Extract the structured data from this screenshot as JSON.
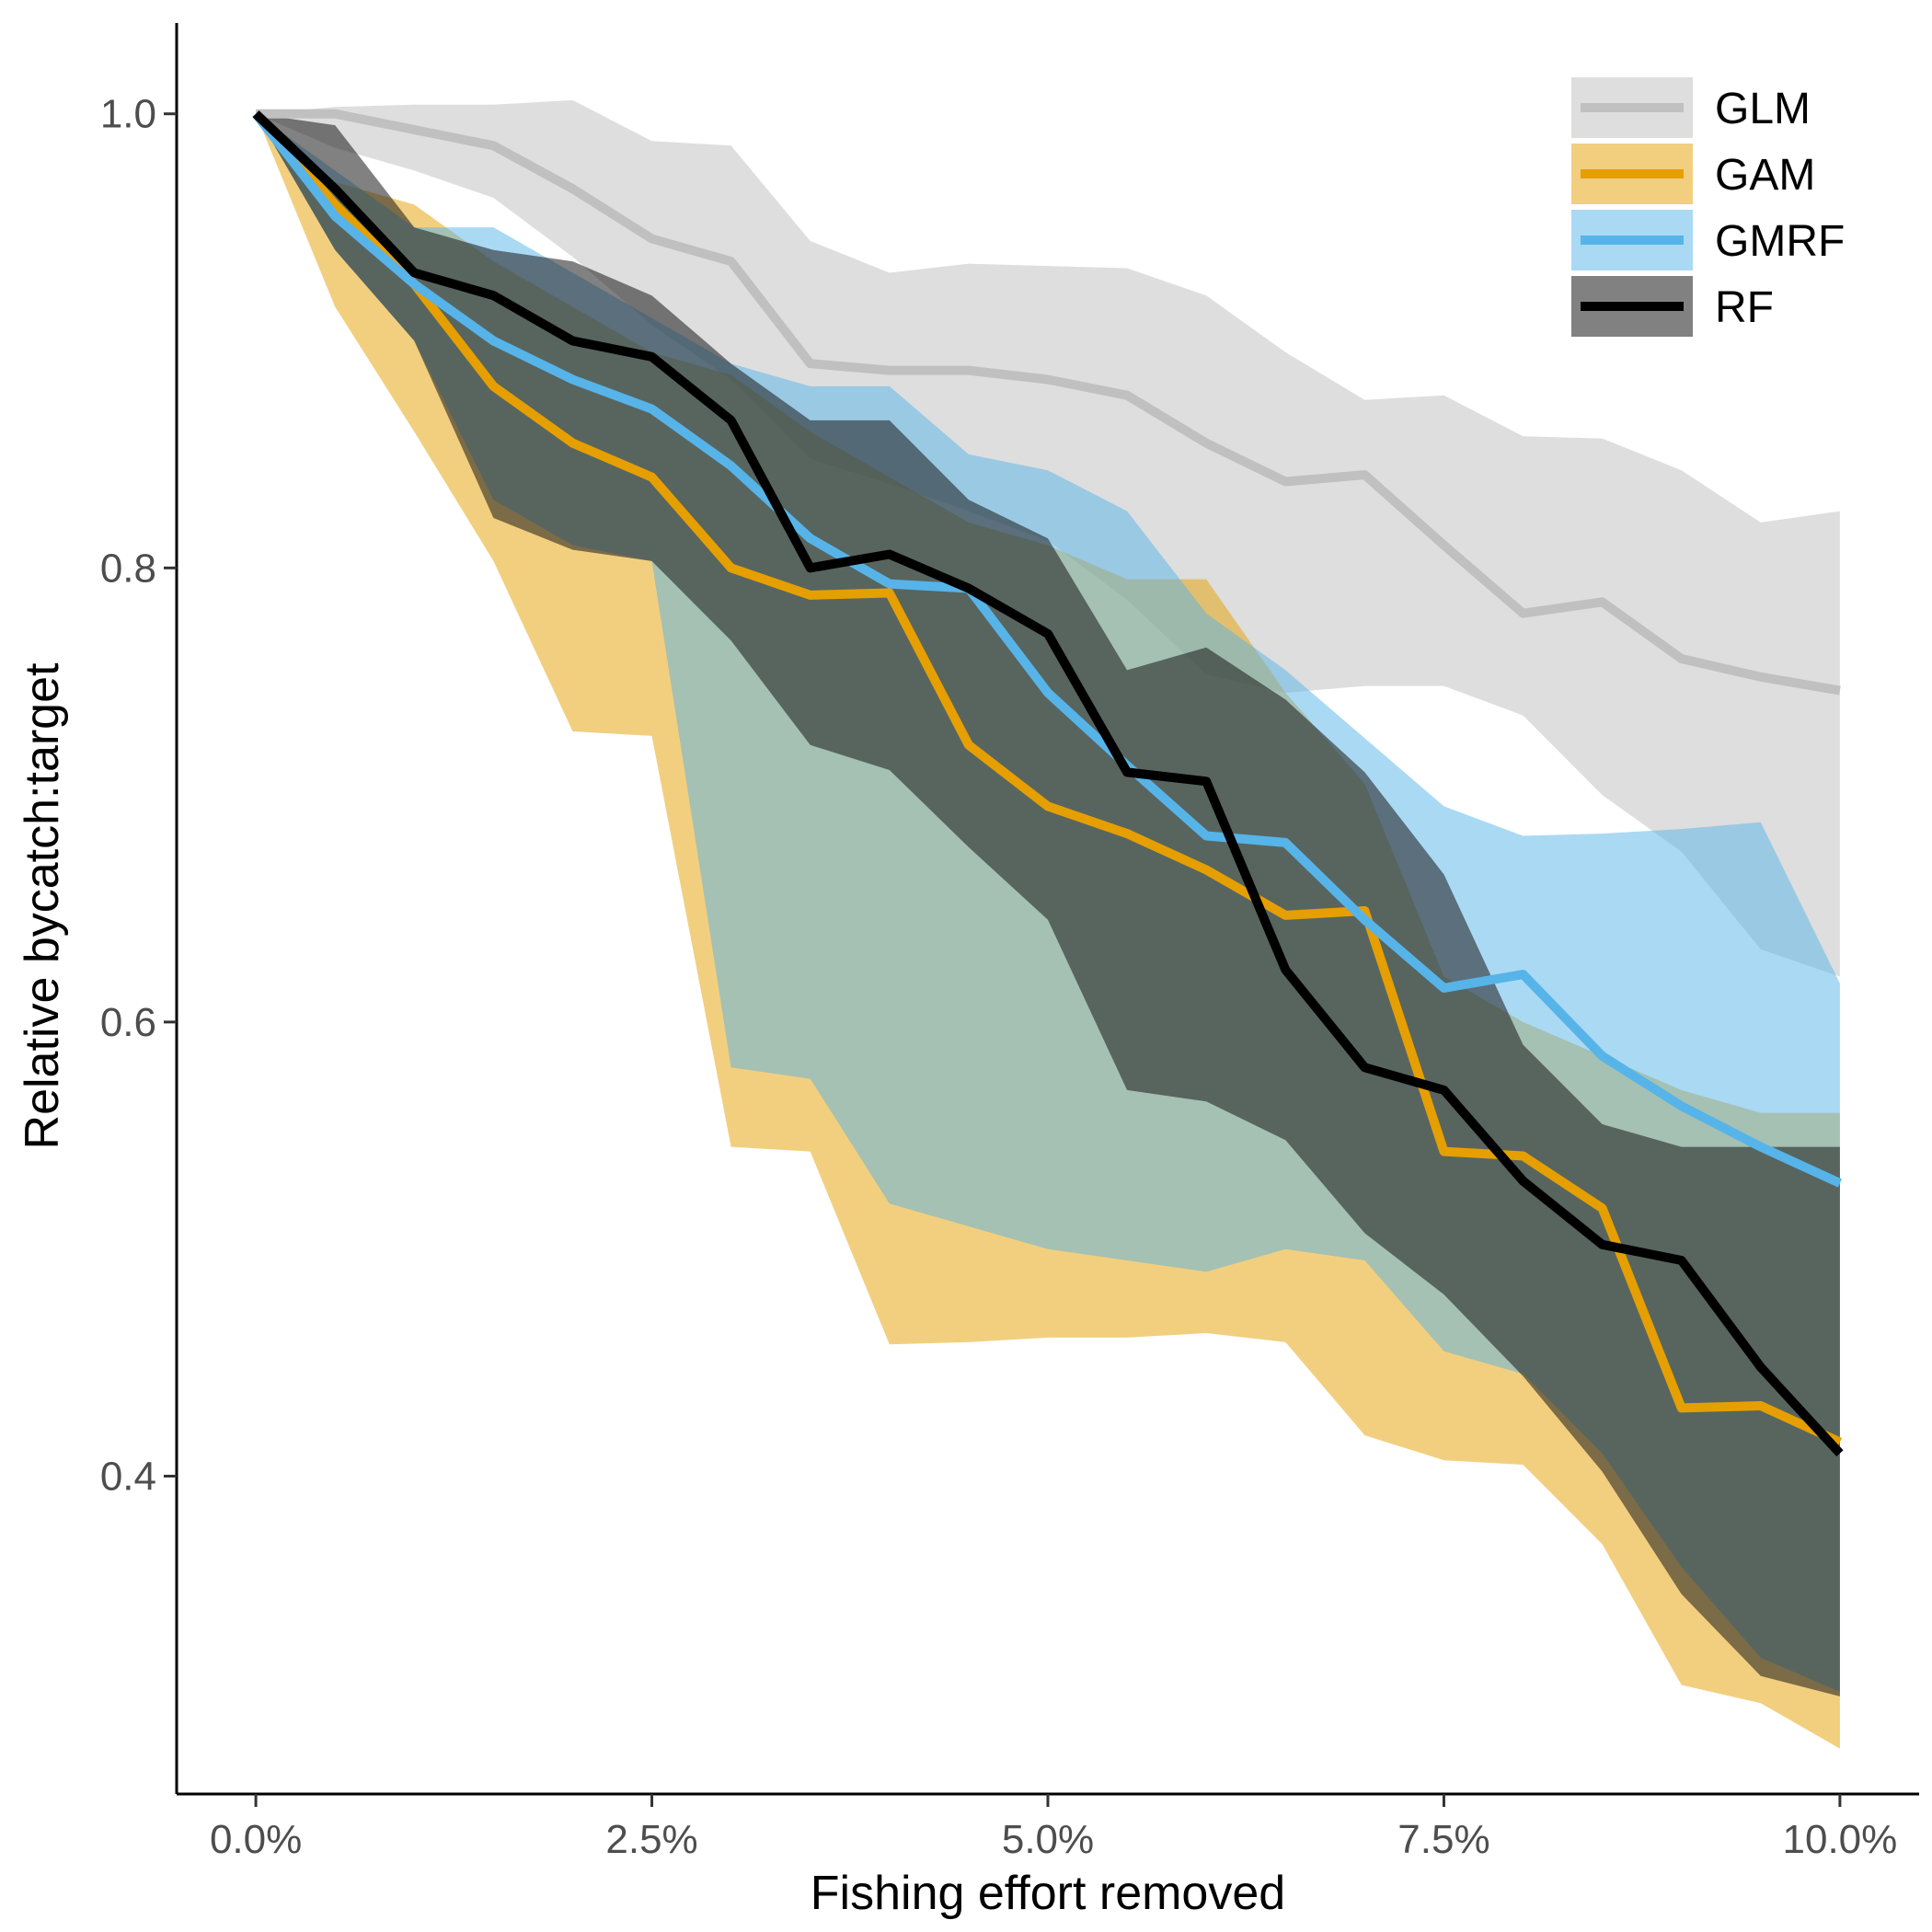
{
  "chart_data": {
    "type": "line",
    "title": "",
    "xlabel": "Fishing effort removed",
    "ylabel": "Relative bycatch:target",
    "xlim": [
      -0.5,
      10.5
    ],
    "ylim": [
      0.26,
      1.04
    ],
    "x_ticks": [
      0,
      2.5,
      5,
      7.5,
      10
    ],
    "x_tick_labels": [
      "0.0%",
      "2.5%",
      "5.0%",
      "7.5%",
      "10.0%"
    ],
    "y_ticks": [
      0.4,
      0.6,
      0.8,
      1.0
    ],
    "y_tick_labels": [
      "0.4",
      "0.6",
      "0.8",
      "1.0"
    ],
    "grid": false,
    "legend_position": "top-right",
    "x": [
      0,
      0.5,
      1,
      1.5,
      2,
      2.5,
      3,
      3.5,
      4,
      4.5,
      5,
      5.5,
      6,
      6.5,
      7,
      7.5,
      8,
      8.5,
      9,
      9.5,
      10
    ],
    "series": [
      {
        "name": "GLM",
        "line_color": "#c0c0c0",
        "band_color": "#d3d3d3",
        "band_opacity": 0.75,
        "values": [
          1.0,
          1.0,
          0.993,
          0.986,
          0.967,
          0.945,
          0.935,
          0.89,
          0.887,
          0.887,
          0.883,
          0.876,
          0.855,
          0.838,
          0.841,
          0.81,
          0.78,
          0.785,
          0.76,
          0.752,
          0.746
        ],
        "lower": [
          1.0,
          0.985,
          0.975,
          0.963,
          0.937,
          0.907,
          0.883,
          0.848,
          0.837,
          0.825,
          0.812,
          0.786,
          0.753,
          0.745,
          0.748,
          0.748,
          0.735,
          0.7,
          0.675,
          0.632,
          0.62
        ],
        "upper": [
          1.0,
          1.003,
          1.004,
          1.004,
          1.006,
          0.988,
          0.986,
          0.944,
          0.93,
          0.934,
          0.933,
          0.932,
          0.92,
          0.895,
          0.874,
          0.876,
          0.858,
          0.857,
          0.843,
          0.82,
          0.825
        ]
      },
      {
        "name": "GAM",
        "line_color": "#e69f00",
        "band_color": "#e69f00",
        "band_opacity": 0.5,
        "values": [
          1.0,
          0.96,
          0.925,
          0.88,
          0.855,
          0.84,
          0.8,
          0.788,
          0.789,
          0.722,
          0.695,
          0.683,
          0.667,
          0.647,
          0.649,
          0.543,
          0.541,
          0.518,
          0.43,
          0.431,
          0.415
        ],
        "lower": [
          1.0,
          0.915,
          0.86,
          0.803,
          0.728,
          0.726,
          0.545,
          0.543,
          0.458,
          0.459,
          0.461,
          0.461,
          0.463,
          0.459,
          0.418,
          0.407,
          0.405,
          0.37,
          0.308,
          0.3,
          0.28
        ],
        "upper": [
          1.0,
          0.97,
          0.96,
          0.935,
          0.915,
          0.895,
          0.885,
          0.86,
          0.84,
          0.82,
          0.81,
          0.795,
          0.795,
          0.745,
          0.705,
          0.62,
          0.6,
          0.585,
          0.57,
          0.56,
          0.56
        ]
      },
      {
        "name": "GMRF",
        "line_color": "#56b4e9",
        "band_color": "#56b4e9",
        "band_opacity": 0.5,
        "values": [
          1.0,
          0.955,
          0.925,
          0.9,
          0.883,
          0.87,
          0.845,
          0.813,
          0.793,
          0.791,
          0.745,
          0.713,
          0.682,
          0.679,
          0.645,
          0.615,
          0.621,
          0.585,
          0.563,
          0.545,
          0.529
        ],
        "lower": [
          1.0,
          0.94,
          0.9,
          0.83,
          0.81,
          0.803,
          0.58,
          0.575,
          0.52,
          0.51,
          0.5,
          0.495,
          0.49,
          0.5,
          0.495,
          0.455,
          0.445,
          0.41,
          0.36,
          0.32,
          0.305
        ],
        "upper": [
          1.0,
          0.975,
          0.95,
          0.95,
          0.93,
          0.91,
          0.89,
          0.88,
          0.88,
          0.85,
          0.843,
          0.825,
          0.78,
          0.755,
          0.725,
          0.695,
          0.682,
          0.683,
          0.685,
          0.688,
          0.617
        ]
      },
      {
        "name": "RF",
        "line_color": "#000000",
        "band_color": "#1a1a1a",
        "band_opacity": 0.55,
        "values": [
          1.0,
          0.967,
          0.93,
          0.92,
          0.9,
          0.893,
          0.865,
          0.8,
          0.806,
          0.791,
          0.771,
          0.71,
          0.706,
          0.623,
          0.58,
          0.57,
          0.53,
          0.502,
          0.495,
          0.448,
          0.41
        ],
        "lower": [
          1.0,
          0.94,
          0.9,
          0.822,
          0.808,
          0.803,
          0.768,
          0.722,
          0.711,
          0.677,
          0.645,
          0.57,
          0.565,
          0.548,
          0.507,
          0.48,
          0.444,
          0.402,
          0.348,
          0.312,
          0.303
        ],
        "upper": [
          1.0,
          0.995,
          0.95,
          0.94,
          0.935,
          0.92,
          0.89,
          0.865,
          0.865,
          0.83,
          0.813,
          0.755,
          0.765,
          0.742,
          0.71,
          0.665,
          0.59,
          0.555,
          0.545,
          0.545,
          0.545
        ]
      }
    ]
  }
}
